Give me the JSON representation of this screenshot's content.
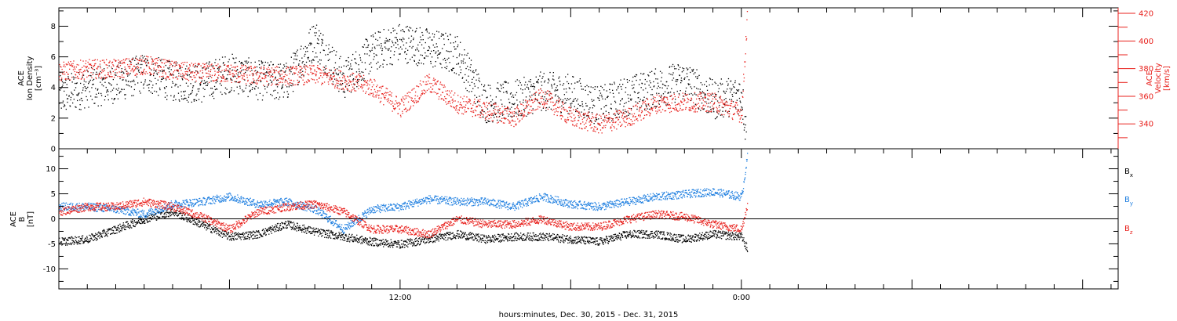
{
  "chart_data": [
    {
      "type": "scatter",
      "panel": "top",
      "x_range_hours": [
        0,
        37.25
      ],
      "left_axis": {
        "label_lines": [
          "ACE",
          "Ion Density",
          "[cm⁻³]"
        ],
        "ylim": [
          0,
          9.2
        ],
        "ticks": [
          "0",
          "2",
          "4",
          "6",
          "8"
        ],
        "color": "#000000"
      },
      "right_axis": {
        "label_lines": [
          "ACE",
          "Velocity",
          "[km/s]"
        ],
        "ylim": [
          322,
          424
        ],
        "ticks": [
          "340",
          "360",
          "380",
          "400",
          "420"
        ],
        "color": "#e8201c"
      },
      "series": [
        {
          "axis": "left",
          "color": "#000000",
          "x": [
            0,
            1,
            2,
            3,
            4,
            5,
            6,
            7,
            8,
            9,
            10,
            11,
            12,
            13,
            14,
            15,
            16,
            17,
            18,
            19,
            20,
            21,
            22,
            23,
            24,
            24.2
          ],
          "values": [
            3.5,
            4.0,
            4.3,
            5.0,
            4.4,
            4.3,
            5.0,
            4.5,
            4.4,
            7.2,
            4.5,
            6.3,
            7.0,
            6.6,
            6.2,
            3.0,
            3.2,
            3.8,
            3.6,
            2.8,
            3.5,
            4.0,
            4.5,
            3.2,
            3.6,
            0.4
          ]
        },
        {
          "axis": "right",
          "color": "#e8201c",
          "x": [
            0,
            1,
            2,
            3,
            4,
            5,
            6,
            7,
            8,
            9,
            10,
            11,
            12,
            13,
            14,
            15,
            16,
            17,
            18,
            19,
            20,
            21,
            22,
            23,
            24,
            24.2
          ],
          "values": [
            378,
            380,
            380,
            383,
            379,
            377,
            377,
            375,
            375,
            376,
            372,
            367,
            352,
            370,
            355,
            350,
            345,
            360,
            345,
            340,
            345,
            355,
            356,
            356,
            348,
            420
          ]
        }
      ]
    },
    {
      "type": "scatter",
      "panel": "bottom",
      "x_range_hours": [
        0,
        37.25
      ],
      "left_axis": {
        "label_lines": [
          "ACE",
          "B",
          "[nT]"
        ],
        "ylim": [
          -14,
          14
        ],
        "ticks": [
          "-10",
          "-5",
          "0",
          "5",
          "10"
        ]
      },
      "zero_line": true,
      "legend": [
        "Bx",
        "By",
        "Bz"
      ],
      "series": [
        {
          "name": "Bx",
          "color": "#000000",
          "x": [
            0,
            1,
            2,
            3,
            4,
            5,
            6,
            7,
            8,
            9,
            10,
            11,
            12,
            13,
            14,
            15,
            16,
            17,
            18,
            19,
            20,
            21,
            22,
            23,
            24,
            24.2
          ],
          "values": [
            -4.5,
            -4.0,
            -2.0,
            0,
            1.5,
            -1.0,
            -3.5,
            -3.0,
            -1.0,
            -2.5,
            -3.5,
            -4.5,
            -5.0,
            -4.0,
            -3.0,
            -4.0,
            -3.5,
            -3.5,
            -4.0,
            -4.5,
            -3.0,
            -3.0,
            -4.0,
            -3.0,
            -3.5,
            -6.0
          ]
        },
        {
          "name": "By",
          "color": "#1f7fe0",
          "x": [
            0,
            1,
            2,
            3,
            4,
            5,
            6,
            7,
            8,
            9,
            10,
            11,
            12,
            13,
            14,
            15,
            16,
            17,
            18,
            19,
            20,
            21,
            22,
            23,
            24,
            24.2
          ],
          "values": [
            2.5,
            2.5,
            2.0,
            1.0,
            3.0,
            3.5,
            4.5,
            3.0,
            3.5,
            2.0,
            -2.0,
            2.0,
            2.5,
            4.0,
            3.5,
            3.5,
            2.5,
            4.5,
            3.0,
            2.5,
            3.5,
            4.5,
            5.0,
            5.5,
            4.5,
            12.5
          ]
        },
        {
          "name": "Bz",
          "color": "#e8201c",
          "x": [
            0,
            1,
            2,
            3,
            4,
            5,
            6,
            7,
            8,
            9,
            10,
            11,
            12,
            13,
            14,
            15,
            16,
            17,
            18,
            19,
            20,
            21,
            22,
            23,
            24,
            24.2
          ],
          "values": [
            1.5,
            2.5,
            2.5,
            3.5,
            2.5,
            0.5,
            -2.0,
            1.5,
            2.5,
            3.0,
            1.5,
            -2.0,
            -2.0,
            -3.0,
            0,
            -1.0,
            -1.0,
            0,
            -1.5,
            -1.5,
            0,
            1.0,
            0.5,
            -1.0,
            -2.0,
            3.0
          ]
        }
      ]
    }
  ],
  "x_axis": {
    "ticks": [
      {
        "hour": 12,
        "label": "12:00"
      },
      {
        "hour": 24,
        "label": "0:00"
      }
    ],
    "title": "hours:minutes, Dec. 30, 2015 - Dec. 31, 2015"
  }
}
